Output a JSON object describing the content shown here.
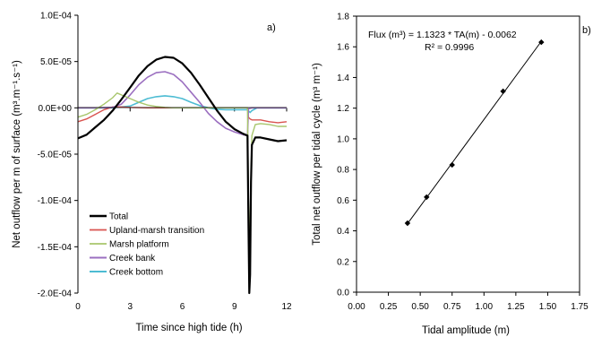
{
  "chart_data": [
    {
      "type": "line",
      "panel_label": "a)",
      "xlabel": "Time since high tide (h)",
      "ylabel": "Net outflow per m of surface (m³.m⁻¹.s⁻¹)",
      "xlim": [
        0,
        12
      ],
      "ylim": [
        -0.0002,
        0.0001
      ],
      "xticks": [
        0,
        3,
        6,
        9,
        12
      ],
      "xtick_labels": [
        "0",
        "3",
        "6",
        "9",
        "12"
      ],
      "yticks": [
        0.0001,
        5e-05,
        0,
        -5e-05,
        -0.0001,
        -0.00015,
        -0.0002
      ],
      "ytick_labels": [
        "1.0E-04",
        "5.0E-05",
        "0.0E+00",
        "-5.0E-05",
        "-1.0E-04",
        "-1.5E-04",
        "-2.0E-04"
      ],
      "grid": false,
      "legend_position": "bottom-left",
      "series": [
        {
          "name": "Total",
          "color": "#000000",
          "width": 2.2,
          "x": [
            0,
            0.5,
            1,
            1.5,
            2,
            2.5,
            3,
            3.5,
            4,
            4.5,
            5,
            5.5,
            6,
            6.5,
            7,
            7.5,
            8,
            8.5,
            9,
            9.5,
            9.75,
            9.8,
            9.85,
            9.9,
            9.95,
            10,
            10.2,
            10.5,
            11,
            11.5,
            12
          ],
          "y": [
            -3.3e-05,
            -2.9e-05,
            -2.1e-05,
            -1.3e-05,
            -3e-06,
            9e-06,
            2.2e-05,
            3.5e-05,
            4.5e-05,
            5.2e-05,
            5.5e-05,
            5.4e-05,
            4.8e-05,
            3.8e-05,
            2.5e-05,
            1.1e-05,
            -3e-06,
            -1.5e-05,
            -2.3e-05,
            -2.8e-05,
            -3e-05,
            -0.00012,
            -0.0002,
            -0.00018,
            -8e-05,
            -4e-05,
            -3.2e-05,
            -3.2e-05,
            -3.4e-05,
            -3.6e-05,
            -3.5e-05
          ]
        },
        {
          "name": "Upland-marsh transition",
          "color": "#d9534f",
          "width": 1.4,
          "x": [
            0,
            0.5,
            1,
            1.5,
            2,
            2.5,
            3,
            4,
            5,
            6,
            7,
            8,
            9,
            9.5,
            9.75,
            9.8,
            9.9,
            10,
            10.5,
            11,
            11.5,
            12
          ],
          "y": [
            -1.5e-05,
            -1.2e-05,
            -7e-06,
            -2e-06,
            1e-06,
            1e-06,
            5e-07,
            0,
            0,
            0,
            0,
            0,
            0,
            0,
            0,
            -1e-05,
            -1.2e-05,
            -1.3e-05,
            -1.3e-05,
            -1.5e-05,
            -1.6e-05,
            -1.5e-05
          ]
        },
        {
          "name": "Marsh platform",
          "color": "#a8c66c",
          "width": 1.4,
          "x": [
            0,
            0.5,
            1,
            1.5,
            2,
            2.25,
            2.5,
            3,
            3.5,
            4,
            4.5,
            5,
            5.5,
            6,
            6.5,
            7,
            8,
            9,
            9.5,
            9.75,
            9.8,
            9.85,
            9.9,
            10,
            10.2,
            10.5,
            11,
            11.5,
            12
          ],
          "y": [
            -1e-05,
            -7e-06,
            -2e-06,
            4e-06,
            1.1e-05,
            1.6e-05,
            1.4e-05,
            1e-05,
            6e-06,
            3e-06,
            1.5e-06,
            5e-07,
            0,
            0,
            0,
            0,
            0,
            0,
            0,
            0,
            -0.0001,
            -0.0002,
            -0.00012,
            -3e-05,
            -1.8e-05,
            -1.7e-05,
            -1.8e-05,
            -2e-05,
            -2e-05
          ]
        },
        {
          "name": "Creek bank",
          "color": "#9b6fc0",
          "width": 1.6,
          "x": [
            0,
            1,
            2,
            2.5,
            3,
            3.5,
            4,
            4.5,
            5,
            5.5,
            6,
            6.5,
            7,
            7.5,
            8,
            8.5,
            9,
            9.5,
            9.75,
            9.8,
            10,
            11,
            12
          ],
          "y": [
            0,
            0,
            5e-07,
            4e-06,
            1.4e-05,
            2.5e-05,
            3.3e-05,
            3.8e-05,
            3.9e-05,
            3.6e-05,
            2.8e-05,
            1.7e-05,
            6e-06,
            -6e-06,
            -1.5e-05,
            -2.2e-05,
            -2.6e-05,
            -2.9e-05,
            -3e-05,
            -1e-06,
            0,
            0,
            0
          ]
        },
        {
          "name": "Creek bottom",
          "color": "#4dbcd3",
          "width": 1.6,
          "x": [
            0,
            1,
            2,
            3,
            3.5,
            4,
            4.5,
            5,
            5.5,
            6,
            6.5,
            7,
            7.5,
            8,
            8.5,
            9,
            9.5,
            9.75,
            9.9,
            10,
            10.3,
            11,
            12
          ],
          "y": [
            0,
            0,
            0,
            2e-06,
            6e-06,
            1e-05,
            1.2e-05,
            1.3e-05,
            1.2e-05,
            1e-05,
            6e-06,
            2.5e-06,
            0,
            -1.5e-06,
            -2e-06,
            -2e-06,
            -2e-06,
            -2e-06,
            -5e-06,
            -3e-06,
            0,
            0,
            0
          ]
        }
      ]
    },
    {
      "type": "scatter",
      "panel_label": "b)",
      "xlabel": "Tidal amplitude (m)",
      "ylabel": "Total net outflow per tidal cycle (m³ m⁻¹)",
      "xlim": [
        0,
        1.75
      ],
      "ylim": [
        0,
        1.8
      ],
      "xticks": [
        0,
        0.25,
        0.5,
        0.75,
        1.0,
        1.25,
        1.5,
        1.75
      ],
      "xtick_labels": [
        "0.00",
        "0.25",
        "0.50",
        "0.75",
        "1.00",
        "1.25",
        "1.50",
        "1.75"
      ],
      "yticks": [
        0,
        0.2,
        0.4,
        0.6,
        0.8,
        1.0,
        1.2,
        1.4,
        1.6,
        1.8
      ],
      "ytick_labels": [
        "0.0",
        "0.2",
        "0.4",
        "0.6",
        "0.8",
        "1.0",
        "1.2",
        "1.4",
        "1.6",
        "1.8"
      ],
      "grid": false,
      "points": {
        "x": [
          0.4,
          0.55,
          0.75,
          1.15,
          1.45
        ],
        "y": [
          0.45,
          0.62,
          0.83,
          1.31,
          1.63
        ]
      },
      "fit": {
        "slope": 1.1323,
        "intercept": -0.0062,
        "x_range": [
          0.4,
          1.45
        ]
      },
      "annotation_lines": [
        "Flux (m³) = 1.1323 * TA(m) - 0.0062",
        "R² = 0.9996"
      ]
    }
  ]
}
